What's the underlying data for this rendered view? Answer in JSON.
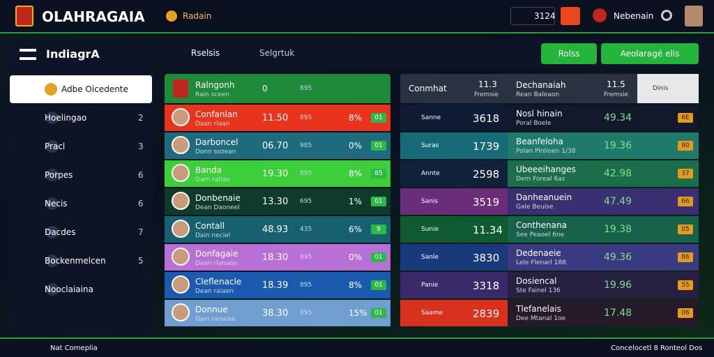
{
  "header": {
    "brand": "OLAHRAGAIA",
    "nav": "Radain",
    "time": "3124",
    "user": "Nebenain"
  },
  "sidebar": {
    "title": "IndiagrA",
    "items": [
      {
        "label": "Adbe Oicedente",
        "badge": null
      },
      {
        "label": "Hoelingao",
        "badge": "2"
      },
      {
        "label": "Pracl",
        "badge": "3"
      },
      {
        "label": "Porpes",
        "badge": "6"
      },
      {
        "label": "Necis",
        "badge": "6"
      },
      {
        "label": "Dacdes",
        "badge": "7"
      },
      {
        "label": "Bockenmelcen",
        "badge": "5"
      },
      {
        "label": "Nooclaiaina",
        "badge": null
      }
    ]
  },
  "toolbar": {
    "tabs": [
      "Rselsis",
      "Selgrtuk"
    ],
    "buttons": [
      "Rolss",
      "Aeolaragé elis"
    ]
  },
  "left_table": {
    "header": [
      "Ralngonh",
      "Rain sceen",
      "0",
      "895"
    ],
    "rows": [
      [
        "Confanlan",
        "Daan rlaan",
        "11.50",
        "895",
        "8%",
        "01"
      ],
      [
        "Darboncel",
        "Donn sozean",
        "06.70",
        "985",
        "0%",
        "01"
      ],
      [
        "Banda",
        "Gam raitas",
        "19.30",
        "895",
        "8%",
        "85"
      ],
      [
        "Donbenaie",
        "Dean Daoneel",
        "13.30",
        "695",
        "1%",
        "01"
      ],
      [
        "Contall",
        "Dain neciel",
        "48.93",
        "435",
        "6%",
        "9"
      ],
      [
        "Donfagaie",
        "Daan rlanaon",
        "18.30",
        "895",
        "0%",
        "01"
      ],
      [
        "Cleflenacle",
        "Dean raiaen",
        "18.39",
        "895",
        "8%",
        "01"
      ],
      [
        "Donnue",
        "Dain ranaiae",
        "38.30",
        "895",
        "15%",
        "01"
      ]
    ]
  },
  "right_table": {
    "header": [
      "Conmhat",
      "11.3",
      "Fremsie",
      "Dechanaiah",
      "Rean Baleaon",
      "11.5",
      "Fremsie",
      "Dinis"
    ],
    "rows": [
      [
        "Sanne",
        "3618",
        "Nosl hinain",
        "Poral Boele",
        "49.34",
        "6E"
      ],
      [
        "Suras",
        "1739",
        "Beanfeloha",
        "Polan Pinlioen 1/38",
        "19.36",
        "80"
      ],
      [
        "Annte",
        "2598",
        "Ubeeeihanges",
        "Dem Foreal 6as",
        "42.98",
        "37"
      ],
      [
        "Sanis",
        "3519",
        "Danheanuein",
        "Gale Beuise",
        "47.49",
        "66"
      ],
      [
        "Sunie",
        "11.34",
        "Conthenana",
        "See Peaoel 6ne",
        "19.38",
        "05"
      ],
      [
        "Sanle",
        "3830",
        "Dedenaeie",
        "Lele Flenarl 188",
        "49.36",
        "86"
      ],
      [
        "Panie",
        "3318",
        "Dosiencal",
        "Ste Fainel 136",
        "19.96",
        "55"
      ],
      [
        "Saame",
        "2839",
        "Tlefanelais",
        "Dee Mtanal 1oe",
        "17.48",
        "06"
      ]
    ]
  },
  "footer": {
    "left": "Nat Comeplia",
    "right": "Concelocetl 8 Ronteol Dos"
  }
}
